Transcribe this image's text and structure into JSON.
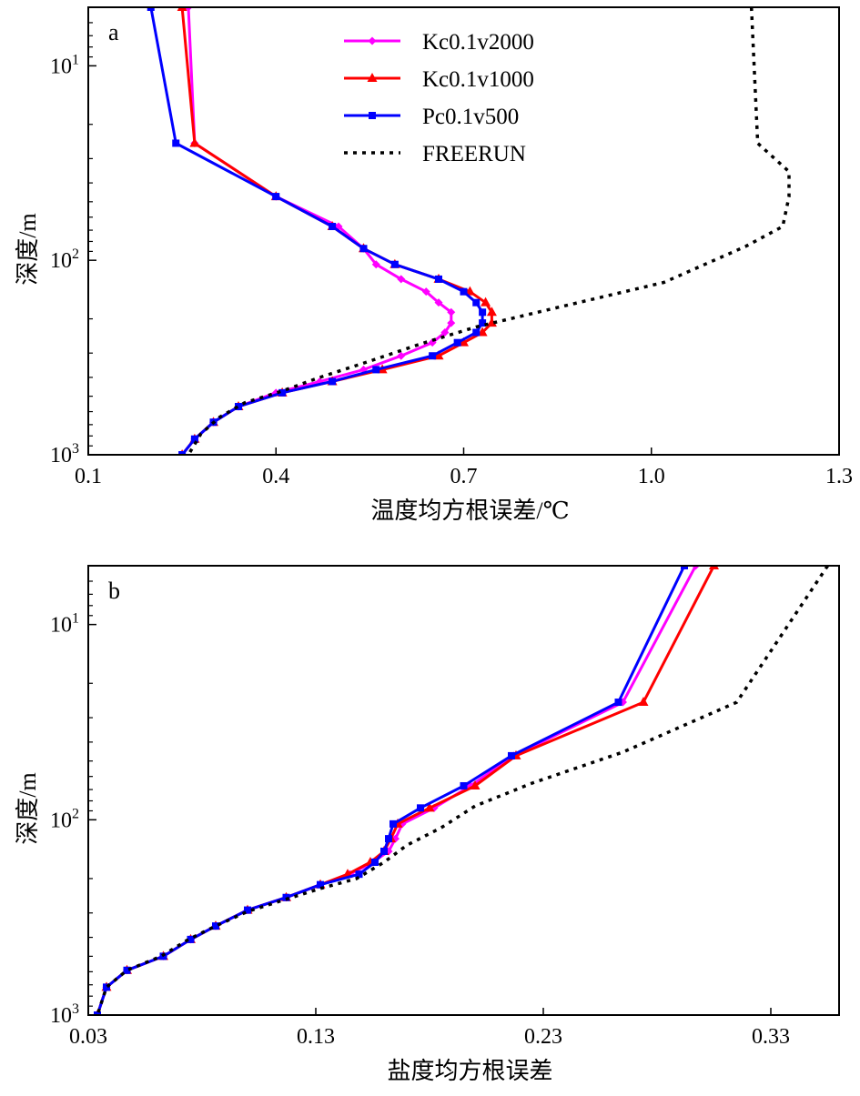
{
  "chart_data": [
    {
      "panel_label": "a",
      "type": "line",
      "xlabel": "温度均方根误差/℃",
      "ylabel": "深度/m",
      "xlim": [
        0.1,
        1.3
      ],
      "ylim": [
        5,
        1000
      ],
      "y_scale": "log",
      "y_inverted": true,
      "x_ticks": [
        "0.1",
        "0.4",
        "0.7",
        "1.0",
        "1.3"
      ],
      "x_tick_values": [
        0.1,
        0.4,
        0.7,
        1.0,
        1.3
      ],
      "y_ticks": [
        {
          "base": "10",
          "exp": "1",
          "value": 10
        },
        {
          "base": "10",
          "exp": "2",
          "value": 100
        },
        {
          "base": "10",
          "exp": "3",
          "value": 1000
        }
      ],
      "legend_position": "top-center",
      "series": [
        {
          "name": "Kc0.1v2000",
          "color": "#ff00ff",
          "marker": "diamond",
          "dash": "solid",
          "x": [
            0.26,
            0.27,
            0.4,
            0.5,
            0.54,
            0.56,
            0.6,
            0.64,
            0.66,
            0.68,
            0.68,
            0.67,
            0.65,
            0.6,
            0.54,
            0.47,
            0.4,
            0.34,
            0.3,
            0.27,
            0.25
          ],
          "y": [
            5,
            25,
            47,
            67,
            87,
            105,
            125,
            145,
            165,
            185,
            210,
            235,
            265,
            310,
            365,
            420,
            480,
            565,
            680,
            830,
            1000
          ]
        },
        {
          "name": "Kc0.1v1000",
          "color": "#ff0000",
          "marker": "triangle",
          "dash": "solid",
          "x": [
            0.25,
            0.27,
            0.4,
            0.49,
            0.54,
            0.59,
            0.66,
            0.71,
            0.735,
            0.745,
            0.745,
            0.73,
            0.7,
            0.66,
            0.57,
            0.49,
            0.41,
            0.34,
            0.3,
            0.27,
            0.25
          ],
          "y": [
            5,
            25,
            47,
            67,
            87,
            105,
            125,
            145,
            165,
            185,
            210,
            235,
            265,
            310,
            365,
            420,
            480,
            565,
            680,
            830,
            1000
          ]
        },
        {
          "name": "Pc0.1v500",
          "color": "#0000ff",
          "marker": "square",
          "dash": "solid",
          "x": [
            0.2,
            0.24,
            0.4,
            0.49,
            0.54,
            0.59,
            0.66,
            0.7,
            0.72,
            0.73,
            0.73,
            0.72,
            0.69,
            0.65,
            0.56,
            0.49,
            0.41,
            0.34,
            0.3,
            0.27,
            0.25
          ],
          "y": [
            5,
            25,
            47,
            67,
            87,
            105,
            125,
            145,
            165,
            185,
            210,
            235,
            265,
            310,
            365,
            420,
            480,
            565,
            680,
            830,
            1000
          ]
        },
        {
          "name": "FREERUN",
          "color": "#000000",
          "marker": "none",
          "dash": "dotted",
          "x": [
            1.16,
            1.17,
            1.22,
            1.22,
            1.21,
            1.15,
            1.02,
            0.85,
            0.72,
            0.63,
            0.55,
            0.47,
            0.41,
            0.35,
            0.31,
            0.28,
            0.26
          ],
          "y": [
            5,
            25,
            35,
            47,
            67,
            85,
            130,
            175,
            220,
            270,
            330,
            400,
            470,
            540,
            640,
            780,
            1000
          ]
        }
      ]
    },
    {
      "panel_label": "b",
      "type": "line",
      "xlabel": "盐度均方根误差",
      "ylabel": "深度/m",
      "xlim": [
        0.03,
        0.36
      ],
      "ylim": [
        5,
        1000
      ],
      "y_scale": "log",
      "y_inverted": true,
      "x_ticks": [
        "0.03",
        "0.13",
        "0.23",
        "0.33"
      ],
      "x_tick_values": [
        0.03,
        0.13,
        0.23,
        0.33
      ],
      "y_ticks": [
        {
          "base": "10",
          "exp": "1",
          "value": 10
        },
        {
          "base": "10",
          "exp": "2",
          "value": 100
        },
        {
          "base": "10",
          "exp": "3",
          "value": 1000
        }
      ],
      "series": [
        {
          "name": "Kc0.1v2000",
          "color": "#ff00ff",
          "marker": "diamond",
          "dash": "solid",
          "x": [
            0.297,
            0.265,
            0.217,
            0.198,
            0.182,
            0.168,
            0.165,
            0.162,
            0.155,
            0.145,
            0.132,
            0.117,
            0.1,
            0.086,
            0.075,
            0.063,
            0.047,
            0.038,
            0.034
          ],
          "y": [
            5,
            25,
            47,
            67,
            87,
            105,
            125,
            145,
            165,
            190,
            215,
            250,
            290,
            350,
            410,
            500,
            590,
            720,
            1000
          ]
        },
        {
          "name": "Kc0.1v1000",
          "color": "#ff0000",
          "marker": "triangle",
          "dash": "solid",
          "x": [
            0.305,
            0.274,
            0.218,
            0.2,
            0.18,
            0.166,
            0.163,
            0.16,
            0.154,
            0.144,
            0.132,
            0.117,
            0.1,
            0.086,
            0.075,
            0.063,
            0.047,
            0.038,
            0.034
          ],
          "y": [
            5,
            25,
            47,
            67,
            87,
            105,
            125,
            145,
            165,
            190,
            215,
            250,
            290,
            350,
            410,
            500,
            590,
            720,
            1000
          ]
        },
        {
          "name": "Pc0.1v500",
          "color": "#0000ff",
          "marker": "square",
          "dash": "solid",
          "x": [
            0.292,
            0.263,
            0.216,
            0.195,
            0.176,
            0.164,
            0.162,
            0.16,
            0.156,
            0.149,
            0.132,
            0.117,
            0.1,
            0.086,
            0.075,
            0.063,
            0.047,
            0.038,
            0.034
          ],
          "y": [
            5,
            25,
            47,
            67,
            87,
            105,
            125,
            145,
            165,
            190,
            215,
            250,
            290,
            350,
            410,
            500,
            590,
            720,
            1000
          ]
        },
        {
          "name": "FREERUN",
          "color": "#000000",
          "marker": "none",
          "dash": "dotted",
          "x": [
            0.355,
            0.315,
            0.265,
            0.225,
            0.2,
            0.185,
            0.17,
            0.16,
            0.148,
            0.132,
            0.117,
            0.1,
            0.086,
            0.074,
            0.062,
            0.047,
            0.038,
            0.034
          ],
          "y": [
            5,
            25,
            45,
            65,
            85,
            110,
            135,
            165,
            200,
            225,
            255,
            295,
            350,
            410,
            500,
            590,
            720,
            1000
          ]
        }
      ]
    }
  ]
}
